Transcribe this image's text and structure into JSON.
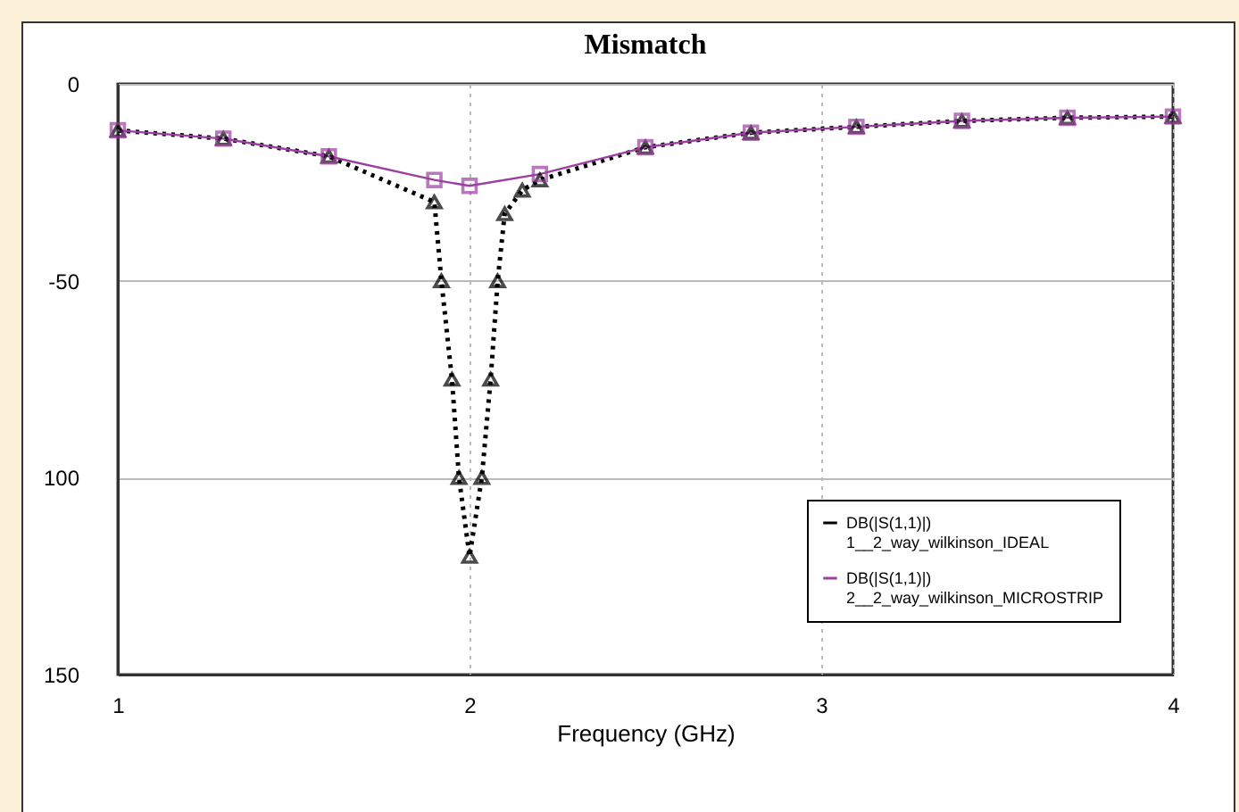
{
  "chart_data": {
    "type": "line",
    "title": "Mismatch",
    "xlabel": "Frequency (GHz)",
    "xlim": [
      1,
      4
    ],
    "xticks": [
      1,
      2,
      3,
      4
    ],
    "ylim": [
      -150,
      0
    ],
    "yticks": [
      0,
      -50,
      {
        "value": -100,
        "label": "100"
      },
      {
        "value": -150,
        "label": "150"
      }
    ],
    "grid": true,
    "legend": "bottom right",
    "series": [
      {
        "name": "DB(|S(1,1)|)\n1__2_way_wilkinson_IDEAL",
        "color": "#000000",
        "marker": "triangle",
        "line_style": "dotted",
        "x": [
          1,
          1.3,
          1.6,
          1.9,
          1.92,
          1.95,
          1.97,
          2.0,
          2.035,
          2.06,
          2.08,
          2.1,
          2.15,
          2.2,
          2.5,
          2.8,
          3.1,
          3.4,
          3.7,
          4.0
        ],
        "values": [
          -11.8,
          -13.9,
          -18.4,
          -30,
          -50,
          -75,
          -100,
          -120,
          -100,
          -75,
          -50,
          -33,
          -27,
          -24.4,
          -16.1,
          -12.4,
          -10.9,
          -9.4,
          -8.6,
          -8.3
        ]
      },
      {
        "name": "DB(|S(1,1)|)\n2__2_way_wilkinson_MICROSTRIP",
        "color": "#9b3fa0",
        "marker": "square",
        "line_style": "solid",
        "x": [
          1,
          1.3,
          1.6,
          1.9,
          2.0,
          2.2,
          2.5,
          2.8,
          3.1,
          3.4,
          3.7,
          4.0
        ],
        "values": [
          -11.8,
          -13.9,
          -18.4,
          -24.4,
          -25.9,
          -22.9,
          -16.1,
          -12.4,
          -10.9,
          -9.4,
          -8.6,
          -8.3
        ]
      }
    ]
  }
}
